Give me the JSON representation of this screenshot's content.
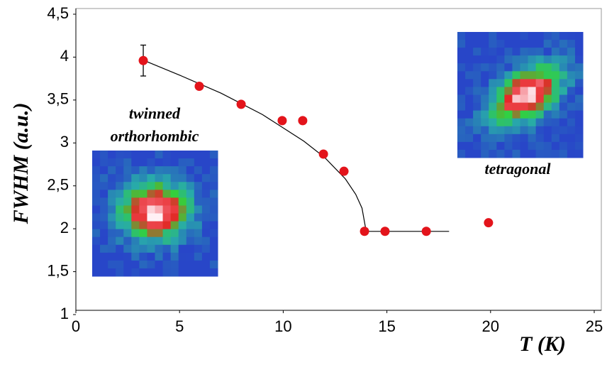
{
  "chart_data": {
    "type": "scatter",
    "xlabel": "T (K)",
    "ylabel": "FWHM (a.u.)",
    "xlim": [
      0,
      25
    ],
    "ylim": [
      1,
      4.5
    ],
    "xticks": [
      0,
      5,
      10,
      15,
      20,
      25
    ],
    "yticks": [
      1,
      {
        "value": 1.5,
        "label": "1,5"
      },
      2,
      {
        "value": 2.5,
        "label": "2,5"
      },
      3,
      {
        "value": 3.5,
        "label": "3,5"
      },
      4,
      {
        "value": 4.5,
        "label": "4,5"
      }
    ],
    "series": [
      {
        "color": "#e3141b",
        "x": [
          3.25,
          5.95,
          7.97,
          9.95,
          10.94,
          11.94,
          12.93,
          13.92,
          14.91,
          16.9,
          19.9
        ],
        "values": [
          3.96,
          3.66,
          3.45,
          3.26,
          3.26,
          2.87,
          2.67,
          1.97,
          1.97,
          1.97,
          2.07
        ],
        "errors": [
          0.18,
          null,
          null,
          null,
          null,
          null,
          null,
          null,
          null,
          null,
          null
        ]
      },
      {
        "type": "line",
        "color": "#000000",
        "x": [
          3.3,
          5,
          7,
          9,
          11,
          12,
          13,
          13.5,
          13.8,
          14,
          18
        ],
        "values": [
          3.96,
          3.79,
          3.58,
          3.33,
          3.02,
          2.83,
          2.58,
          2.4,
          2.24,
          1.97,
          1.97
        ]
      }
    ],
    "annotations": [
      "twinned",
      "orthorhombic",
      "tetragonal"
    ]
  }
}
